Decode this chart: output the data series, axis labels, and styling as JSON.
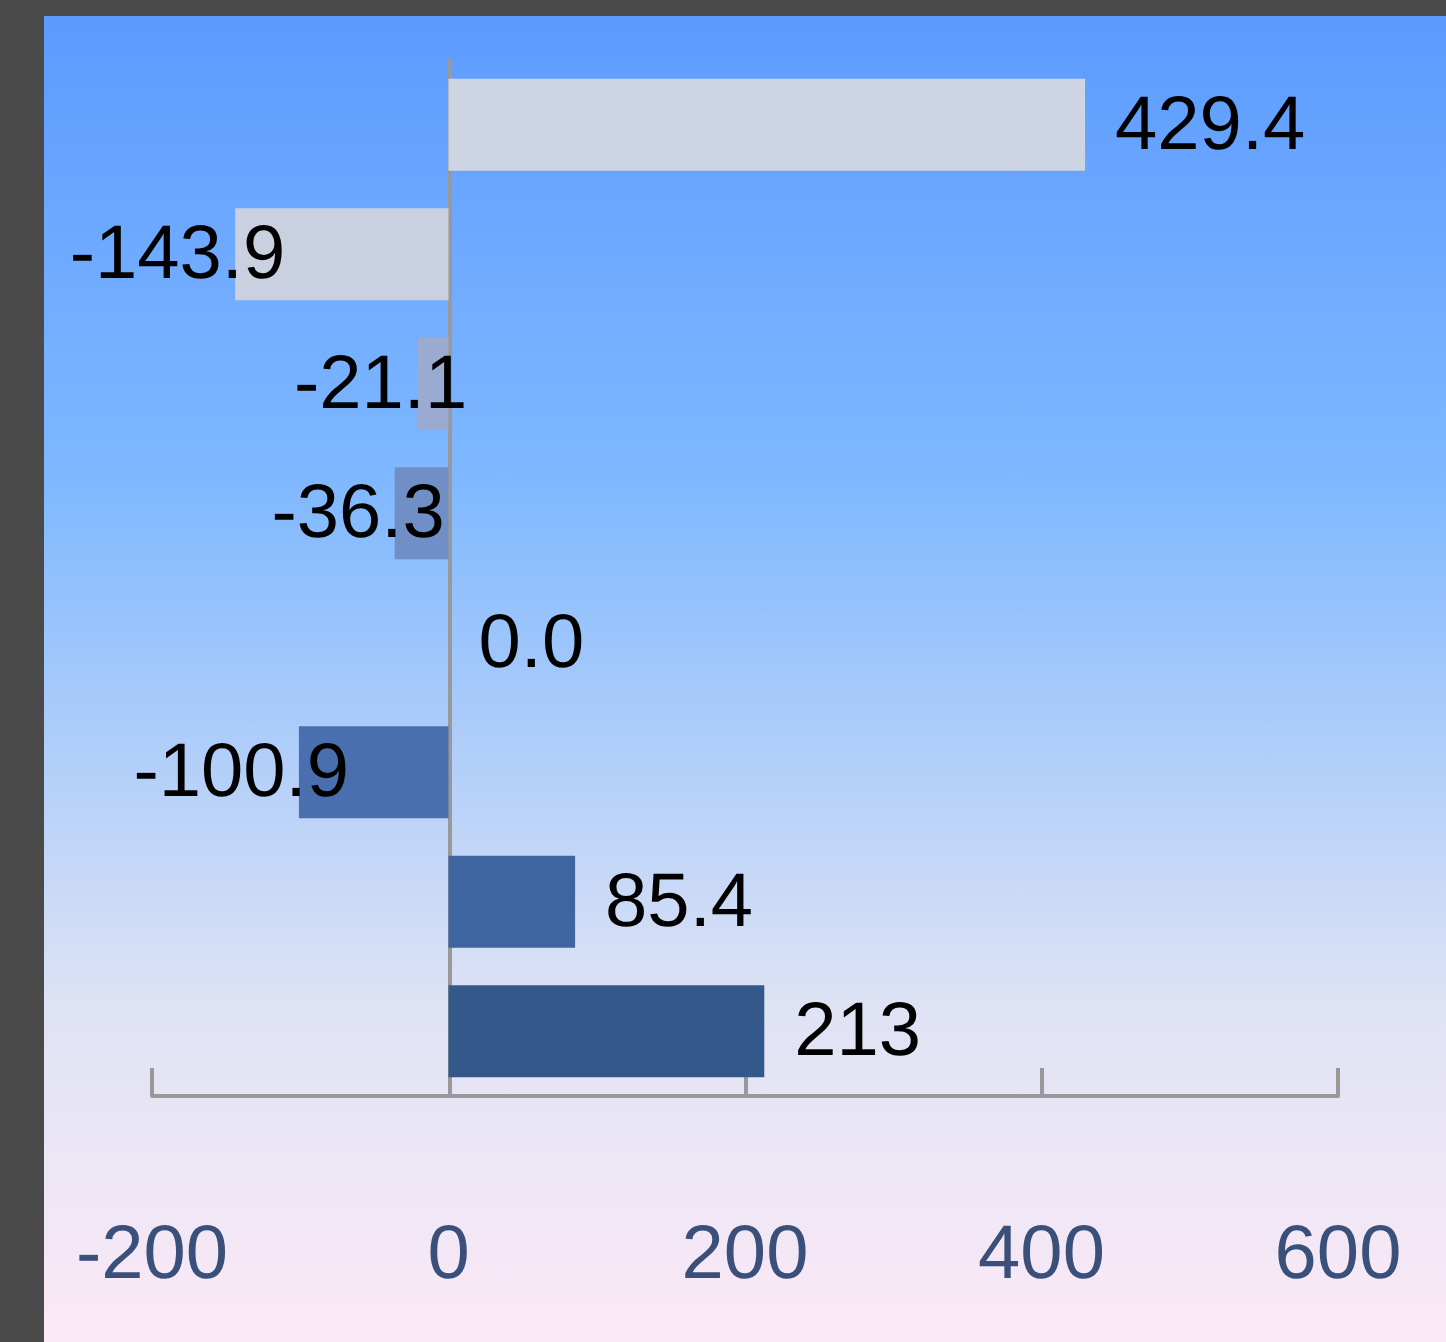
{
  "chart_data": {
    "type": "bar",
    "orientation": "horizontal",
    "categories": [
      null,
      null,
      null,
      null,
      null,
      null,
      null,
      null
    ],
    "values": [
      429.4,
      -143.9,
      -21.1,
      -36.3,
      0,
      -100.9,
      85.4,
      213
    ],
    "colors": [
      "#cdd5e4",
      "#c9d0e0",
      "#9aaad0",
      "#6f8fc6",
      "#5a7fbe",
      "#4a6fae",
      "#3f65a0",
      "#34588a"
    ],
    "value_labels": [
      "429.4",
      "-143.9",
      "-21.1",
      "-36.3",
      "0.0",
      "-100.9",
      "85.4",
      "213"
    ],
    "xlim": [
      -200,
      600
    ],
    "xticks": [
      -200,
      0,
      200,
      400,
      600
    ]
  }
}
